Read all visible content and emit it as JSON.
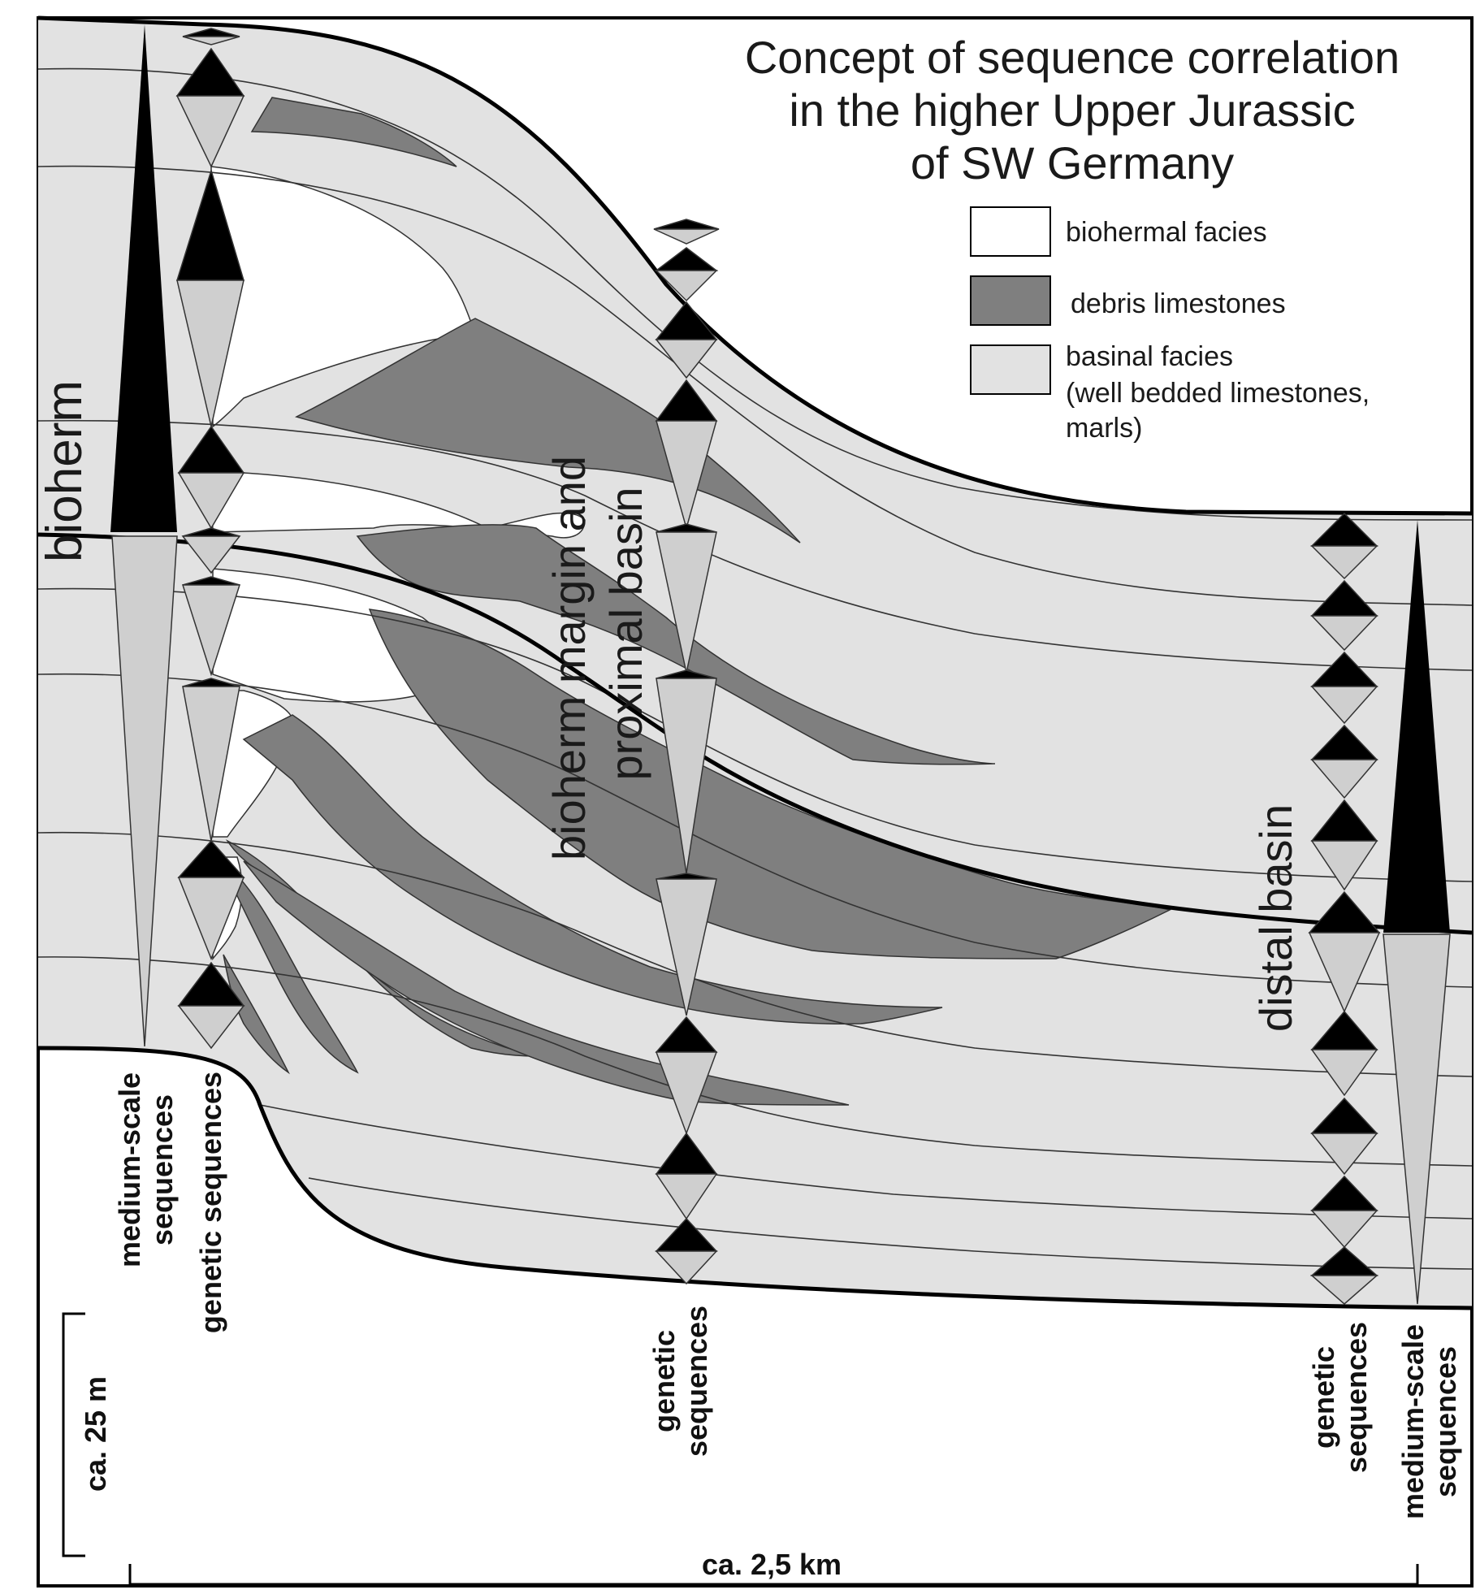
{
  "title": {
    "line1": "Concept of sequence correlation",
    "line2": "in the higher Upper Jurassic",
    "line3": "of SW Germany"
  },
  "legend": {
    "items": [
      {
        "label": "biohermal facies",
        "color": "#ffffff"
      },
      {
        "label": "debris limestones",
        "color": "#7f7f7f"
      },
      {
        "label": "basinal facies",
        "color": "#e2e2e2"
      }
    ],
    "basinal_note_line1": "(well bedded limestones,",
    "basinal_note_line2": "marls)"
  },
  "zones": {
    "bioherm": "bioherm",
    "margin_line1": "bioherm margin and",
    "margin_line2": "proximal basin",
    "distal": "distal basin"
  },
  "column_labels": {
    "left_medium_line1": "medium-scale",
    "left_medium_line2": "sequences",
    "left_genetic": "genetic sequences",
    "mid_genetic_line1": "genetic",
    "mid_genetic_line2": "sequences",
    "right_genetic_line1": "genetic",
    "right_genetic_line2": "sequences",
    "right_medium_line1": "medium-scale",
    "right_medium_line2": "sequences"
  },
  "scale": {
    "vertical": "ca. 25 m",
    "horizontal": "ca. 2,5 km"
  },
  "colors": {
    "biohermal": "#ffffff",
    "debris": "#7f7f7f",
    "basinal": "#e2e2e2",
    "dark": "#000000",
    "regressive": "#cfcfcf"
  }
}
